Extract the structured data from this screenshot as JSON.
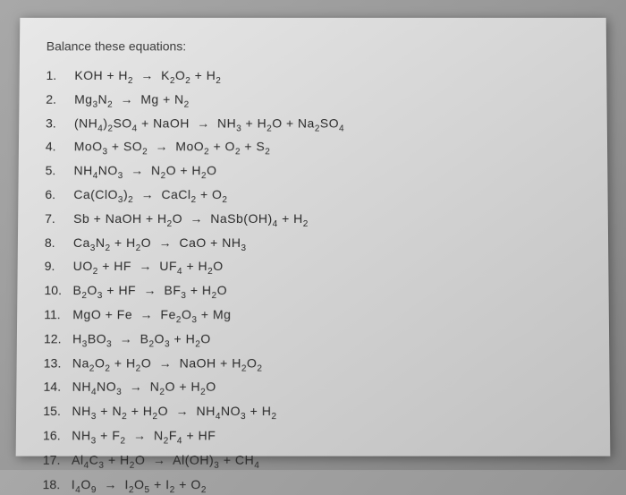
{
  "title": "Balance these equations:",
  "equations": [
    {
      "num": "1.",
      "formula": "KOH   +   H₂   →   K₂O₂        +     H₂"
    },
    {
      "num": "2.",
      "formula": "Mg₃N₂   →   Mg   +    N₂"
    },
    {
      "num": "3.",
      "formula": "(NH₄)₂SO₄    +      NaOH   →   NH₃   +      H₂O   +  Na₂SO₄"
    },
    {
      "num": "4.",
      "formula": "MoO₃     +     SO₂    →    MoO₂    +      O₂    +  S₂"
    },
    {
      "num": "5.",
      "formula": "NH₄NO₃  →   N₂O    +        H₂O"
    },
    {
      "num": "6.",
      "formula": "Ca(ClO₃)₂   →    CaCl₂    +         O₂"
    },
    {
      "num": "7.",
      "formula": "Sb   +      NaOH    +    H₂O    →       NaSb(OH)₄       +       H₂"
    },
    {
      "num": "8.",
      "formula": "Ca₃N₂    +      H₂O   →     CaO     +      NH₃"
    },
    {
      "num": "9.",
      "formula": "UO₂      +     HF    →    UF₄    +     H₂O"
    },
    {
      "num": "10.",
      "formula": "B₂O₃    +    HF   →   BF₃    +     H₂O"
    },
    {
      "num": "11.",
      "formula": "MgO    +    Fe   →    Fe₂O₃    +    Mg"
    },
    {
      "num": "12.",
      "formula": "H₃BO₃     →      B₂O₃    +       H₂O"
    },
    {
      "num": "13.",
      "formula": "Na₂O₂    +     H₂O    →     NaOH       +       H₂O₂"
    },
    {
      "num": "14.",
      "formula": "NH₄NO₃     →      N₂O       +  H₂O"
    },
    {
      "num": "15.",
      "formula": "NH₃       +      N₂       +      H₂O  →    NH₄NO₃  +    H₂"
    },
    {
      "num": "16.",
      "formula": "NH₃       +     F₂     →    N₂F₄       +      HF"
    },
    {
      "num": "17.",
      "formula": "Al₄C₃     +     H₂O    →    Al(OH)₃    +       CH₄"
    },
    {
      "num": "18.",
      "formula": "I₄O₉     →       I₂O₅      +     I₂     +       O₂"
    }
  ]
}
